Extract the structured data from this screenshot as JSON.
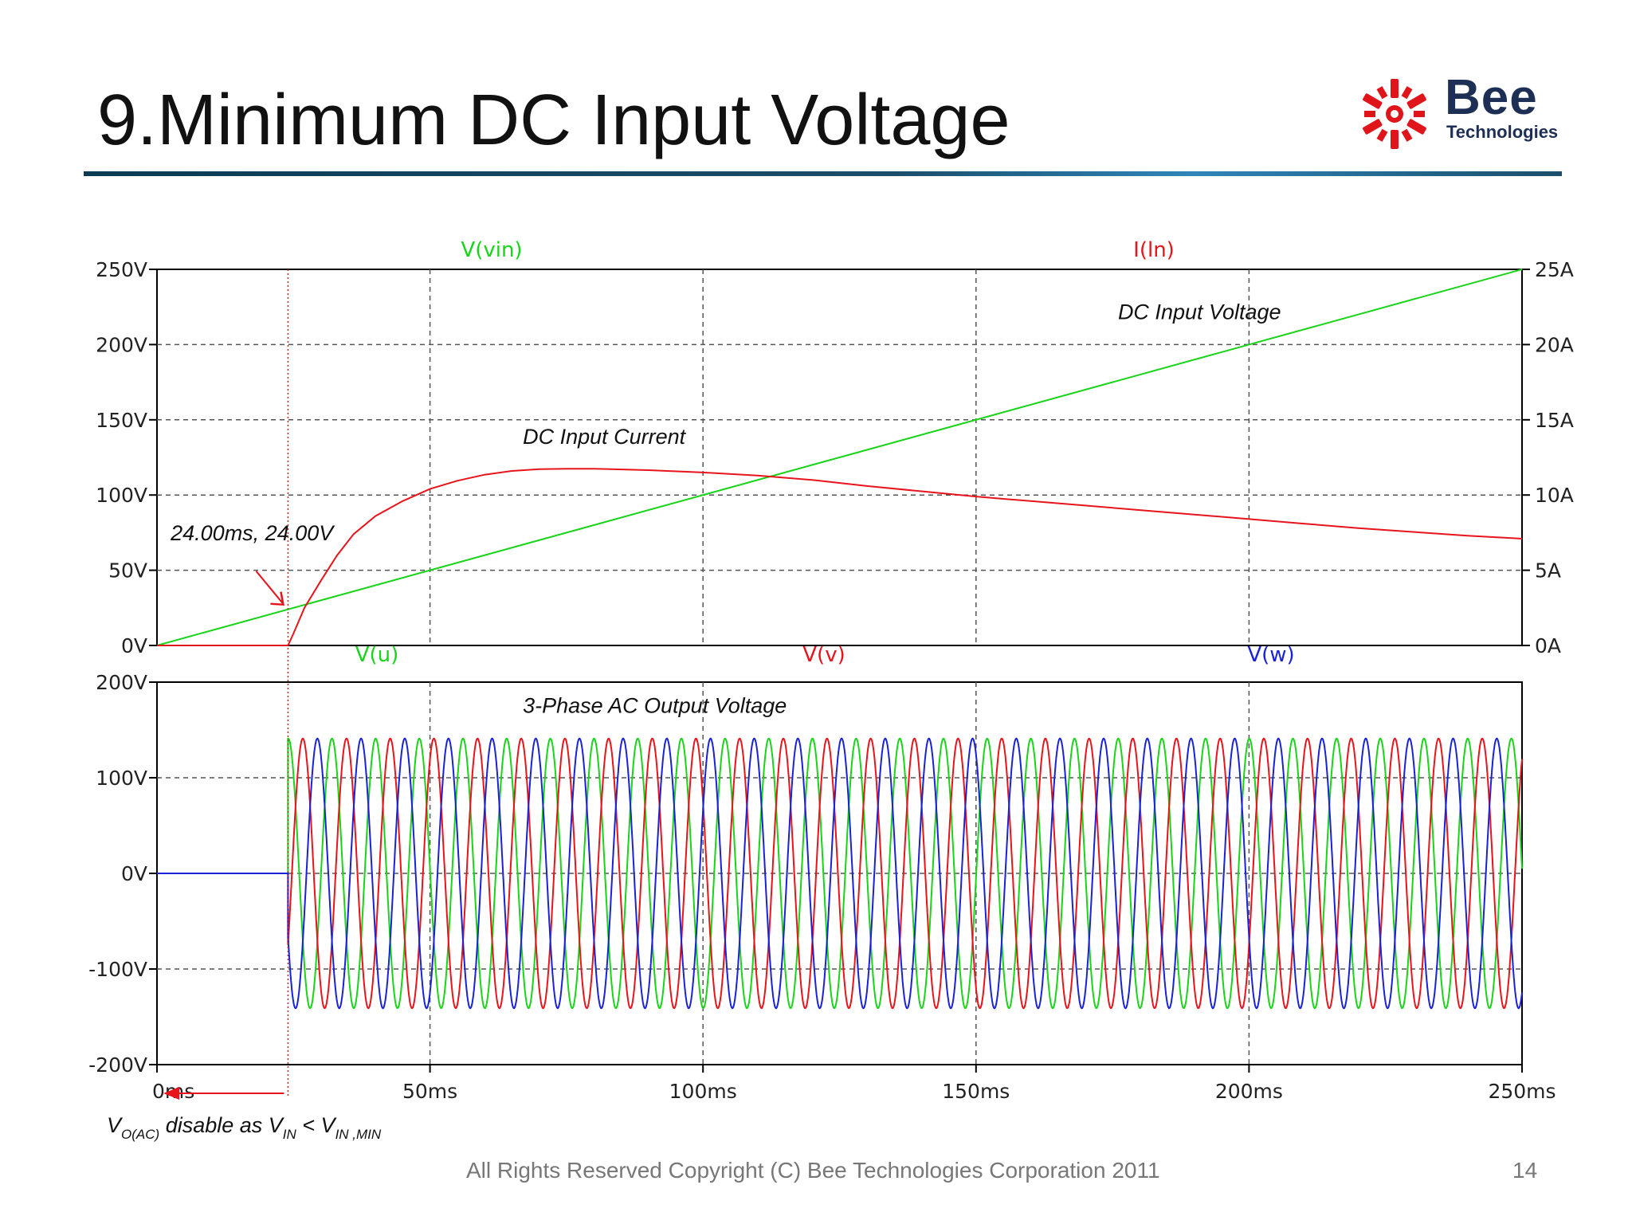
{
  "slide": {
    "title": "9.Minimum DC Input Voltage",
    "footer": "All Rights Reserved Copyright (C) Bee Technologies Corporation 2011",
    "page_number": "14",
    "logo": {
      "word": "Bee",
      "sub": "Technologies",
      "name": "bee-technologies-logo",
      "colors": {
        "mark": "#e0141b",
        "text": "#1d2f55"
      }
    }
  },
  "colors": {
    "green": "#19d419",
    "red": "#e8141b",
    "blue": "#1a22d6",
    "grid": "#555555",
    "frame": "#000000"
  },
  "chart_data": [
    {
      "type": "line",
      "panel": "upper",
      "x_ticks": [
        "0ms",
        "50ms",
        "100ms",
        "150ms",
        "200ms",
        "250ms"
      ],
      "y_ticks_left": [
        "250V",
        "200V",
        "150V",
        "100V",
        "50V",
        "0V"
      ],
      "y_ticks_right": [
        "25A",
        "20A",
        "15A",
        "10A",
        "5A",
        "0A"
      ],
      "xlim_ms": [
        0,
        250
      ],
      "ylim_left_V": [
        0,
        250
      ],
      "ylim_right_A": [
        0,
        25
      ],
      "grid": true,
      "legend": [
        "V(vin)",
        "I(ln)"
      ],
      "series": [
        {
          "name": "V(vin)",
          "color": "green",
          "axis": "left",
          "x": [
            0,
            250
          ],
          "y": [
            0,
            250
          ]
        },
        {
          "name": "I(ln)",
          "color": "red",
          "axis": "right",
          "x": [
            0,
            23.5,
            24,
            25,
            27,
            30,
            33,
            36,
            40,
            45,
            50,
            55,
            60,
            65,
            70,
            75,
            80,
            90,
            100,
            110,
            120,
            130,
            140,
            150,
            160,
            170,
            180,
            190,
            200,
            210,
            220,
            230,
            240,
            250
          ],
          "y": [
            0,
            0,
            0,
            0.8,
            2.5,
            4.3,
            6.0,
            7.4,
            8.6,
            9.6,
            10.4,
            10.95,
            11.35,
            11.6,
            11.72,
            11.75,
            11.75,
            11.65,
            11.5,
            11.3,
            11.0,
            10.6,
            10.25,
            9.9,
            9.6,
            9.3,
            9.0,
            8.7,
            8.4,
            8.1,
            7.8,
            7.55,
            7.3,
            7.1
          ]
        }
      ],
      "annotations": [
        {
          "text": "DC Input Voltage",
          "x_ms": 176,
          "y_V": 217
        },
        {
          "text": "DC Input Current",
          "x_ms": 67,
          "y_V": 134
        },
        {
          "text": "24.00ms, 24.00V",
          "x_ms": 2.5,
          "y_V": 70,
          "color": "red"
        }
      ],
      "marker": {
        "x_ms": 24,
        "y_V": 24
      }
    },
    {
      "type": "line",
      "panel": "lower",
      "x_ticks": [
        "0ms",
        "50ms",
        "100ms",
        "150ms",
        "200ms",
        "250ms"
      ],
      "y_ticks_left": [
        "200V",
        "100V",
        "0V",
        "-100V",
        "-200V"
      ],
      "xlim_ms": [
        0,
        250
      ],
      "ylim_V": [
        -200,
        200
      ],
      "grid": true,
      "legend": [
        "V(u)",
        "V(v)",
        "V(w)"
      ],
      "waveform": {
        "amplitude_V": 141,
        "frequency_hz": 125,
        "enable_ms": 24,
        "phases_deg": {
          "V(u)": 88,
          "V(v)": -32,
          "V(w)": 208
        }
      },
      "series": [
        {
          "name": "V(u)",
          "color": "green"
        },
        {
          "name": "V(v)",
          "color": "red"
        },
        {
          "name": "V(w)",
          "color": "blue"
        }
      ],
      "annotations": [
        {
          "text": "3-Phase AC Output Voltage",
          "x_ms": 67,
          "y_V": 168
        }
      ]
    }
  ],
  "note": {
    "main": "V",
    "sub1": "O(AC)",
    "mid": " disable as V",
    "sub2": "IN",
    "lt": " < V",
    "sub3": "IN ,MIN"
  }
}
